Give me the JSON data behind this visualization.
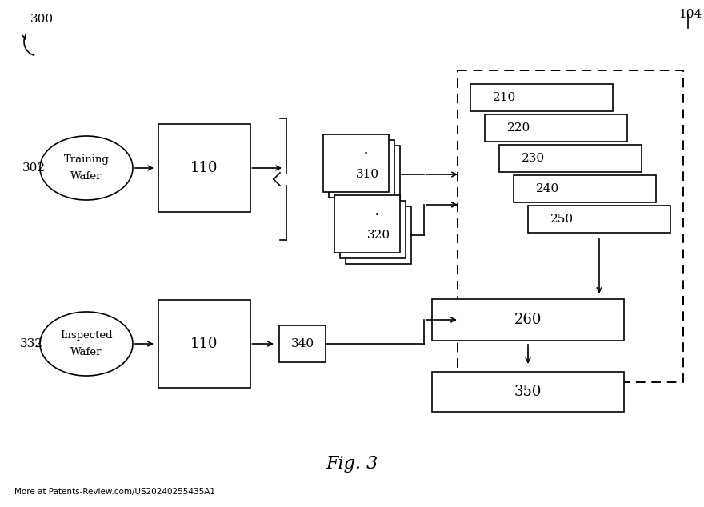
{
  "fig_width": 8.8,
  "fig_height": 6.34,
  "dpi": 100,
  "bg_color": "#ffffff",
  "title_label": "Fig. 3",
  "footer_text": "More at Patents-Review.com/US20240255435A1",
  "label_300": "300",
  "label_104": "104",
  "label_302": "302",
  "label_332": "332",
  "label_110_top": "110",
  "label_110_bot": "110",
  "label_310": "310",
  "label_320": "320",
  "label_340": "340",
  "label_260": "260",
  "label_350": "350",
  "box_edge": "#000000",
  "box_face": "#ffffff",
  "arrow_color": "#000000",
  "text_color": "#000000",
  "stacked_labels": [
    "210",
    "220",
    "230",
    "240",
    "250"
  ],
  "lw": 1.2,
  "lw_dashed": 1.4
}
